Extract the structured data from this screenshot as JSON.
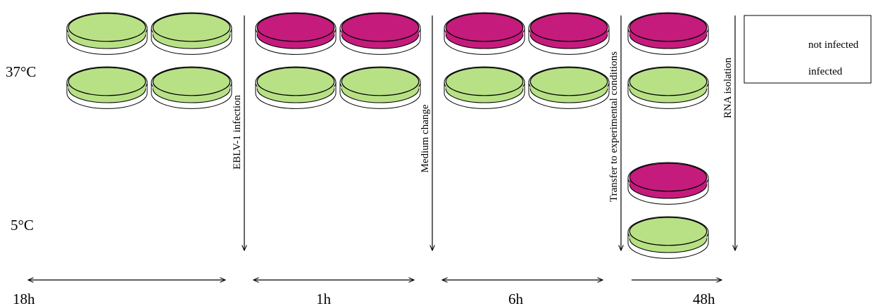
{
  "rows": [
    "37°C",
    "5°C"
  ],
  "steps": [
    "EBLV-1 infection",
    "Medium change",
    "Transfer to experimental conditions",
    "RNA isolation"
  ],
  "durations": [
    "18h",
    "1h",
    "6h",
    "48h"
  ],
  "legend": [
    {
      "label": "not infected",
      "color": "#b8e186"
    },
    {
      "label": "infected",
      "color": "#c51b7d"
    }
  ]
}
